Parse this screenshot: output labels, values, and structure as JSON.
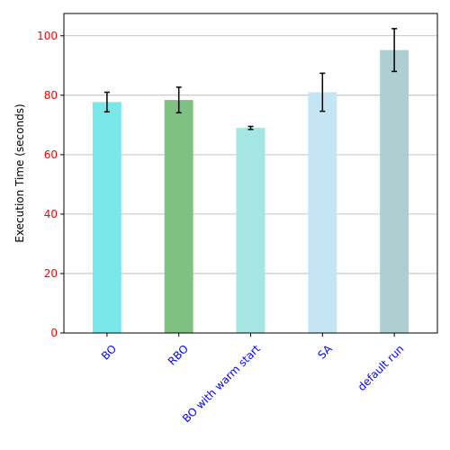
{
  "chart_data": {
    "type": "bar",
    "title": "",
    "xlabel": "",
    "ylabel": "Execution Time (seconds)",
    "categories": [
      "BO",
      "RBO",
      "BO with warm start",
      "SA",
      "default run"
    ],
    "values": [
      77.7,
      78.4,
      69.0,
      81.0,
      95.2
    ],
    "errors": [
      3.3,
      4.3,
      0.5,
      6.4,
      7.2
    ],
    "bar_colors": [
      "#7ae8e8",
      "#80c080",
      "#a3e6e3",
      "#c4e6f4",
      "#aecfd2"
    ],
    "ylim": [
      0,
      107.5
    ],
    "yticks": [
      0,
      20,
      40,
      60,
      80,
      100
    ],
    "ytick_color": "#ff0000",
    "xtick_color": "#0000ff",
    "grid": "y",
    "grid_color": "#b0b0b0"
  }
}
